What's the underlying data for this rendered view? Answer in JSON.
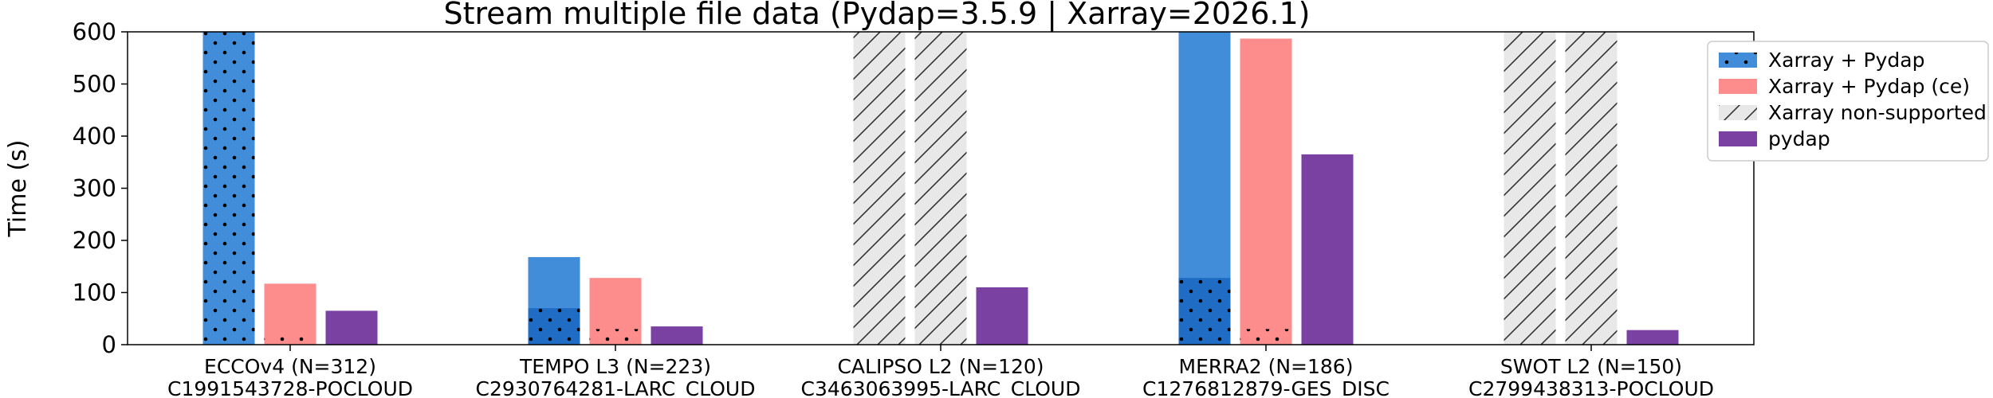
{
  "chart_data": {
    "type": "bar",
    "title": "Stream multiple file data (Pydap=3.5.9 | Xarray=2026.1)",
    "xlabel": "",
    "ylabel": "Time (s)",
    "ylim": [
      0,
      600
    ],
    "yticks": [
      0,
      100,
      200,
      300,
      400,
      500,
      600
    ],
    "grid": false,
    "legend_placement": "outside-right",
    "categories": [
      {
        "name": "ECCOv4 (N=312)",
        "id": "C1991543728-POCLOUD"
      },
      {
        "name": "TEMPO L3 (N=223)",
        "id": "C2930764281-LARC_CLOUD"
      },
      {
        "name": "CALIPSO L2 (N=120)",
        "id": "C3463063995-LARC_CLOUD"
      },
      {
        "name": "MERRA2 (N=186)",
        "id": "C1276812879-GES_DISC"
      },
      {
        "name": "SWOT L2 (N=150)",
        "id": "C2799438313-POCLOUD"
      }
    ],
    "series": [
      {
        "name": "Xarray + Pydap",
        "color": "#418dd9",
        "dark_color": "#1f6cc4",
        "values": [
          600,
          168,
          null,
          600,
          null
        ],
        "dotted_part": [
          600,
          70,
          null,
          128,
          null
        ]
      },
      {
        "name": "Xarray + Pydap (ce)",
        "color": "#fd8c8c",
        "values": [
          117,
          128,
          null,
          587,
          null
        ],
        "dotted_part": [
          25,
          30,
          null,
          30,
          null
        ]
      },
      {
        "name": "Xarray non-supported",
        "color": "#e8e8e8",
        "values": [
          null,
          null,
          600,
          null,
          600
        ]
      },
      {
        "name": "pydap",
        "color": "#7a40a2",
        "values": [
          65,
          35,
          110,
          365,
          28
        ]
      }
    ]
  }
}
